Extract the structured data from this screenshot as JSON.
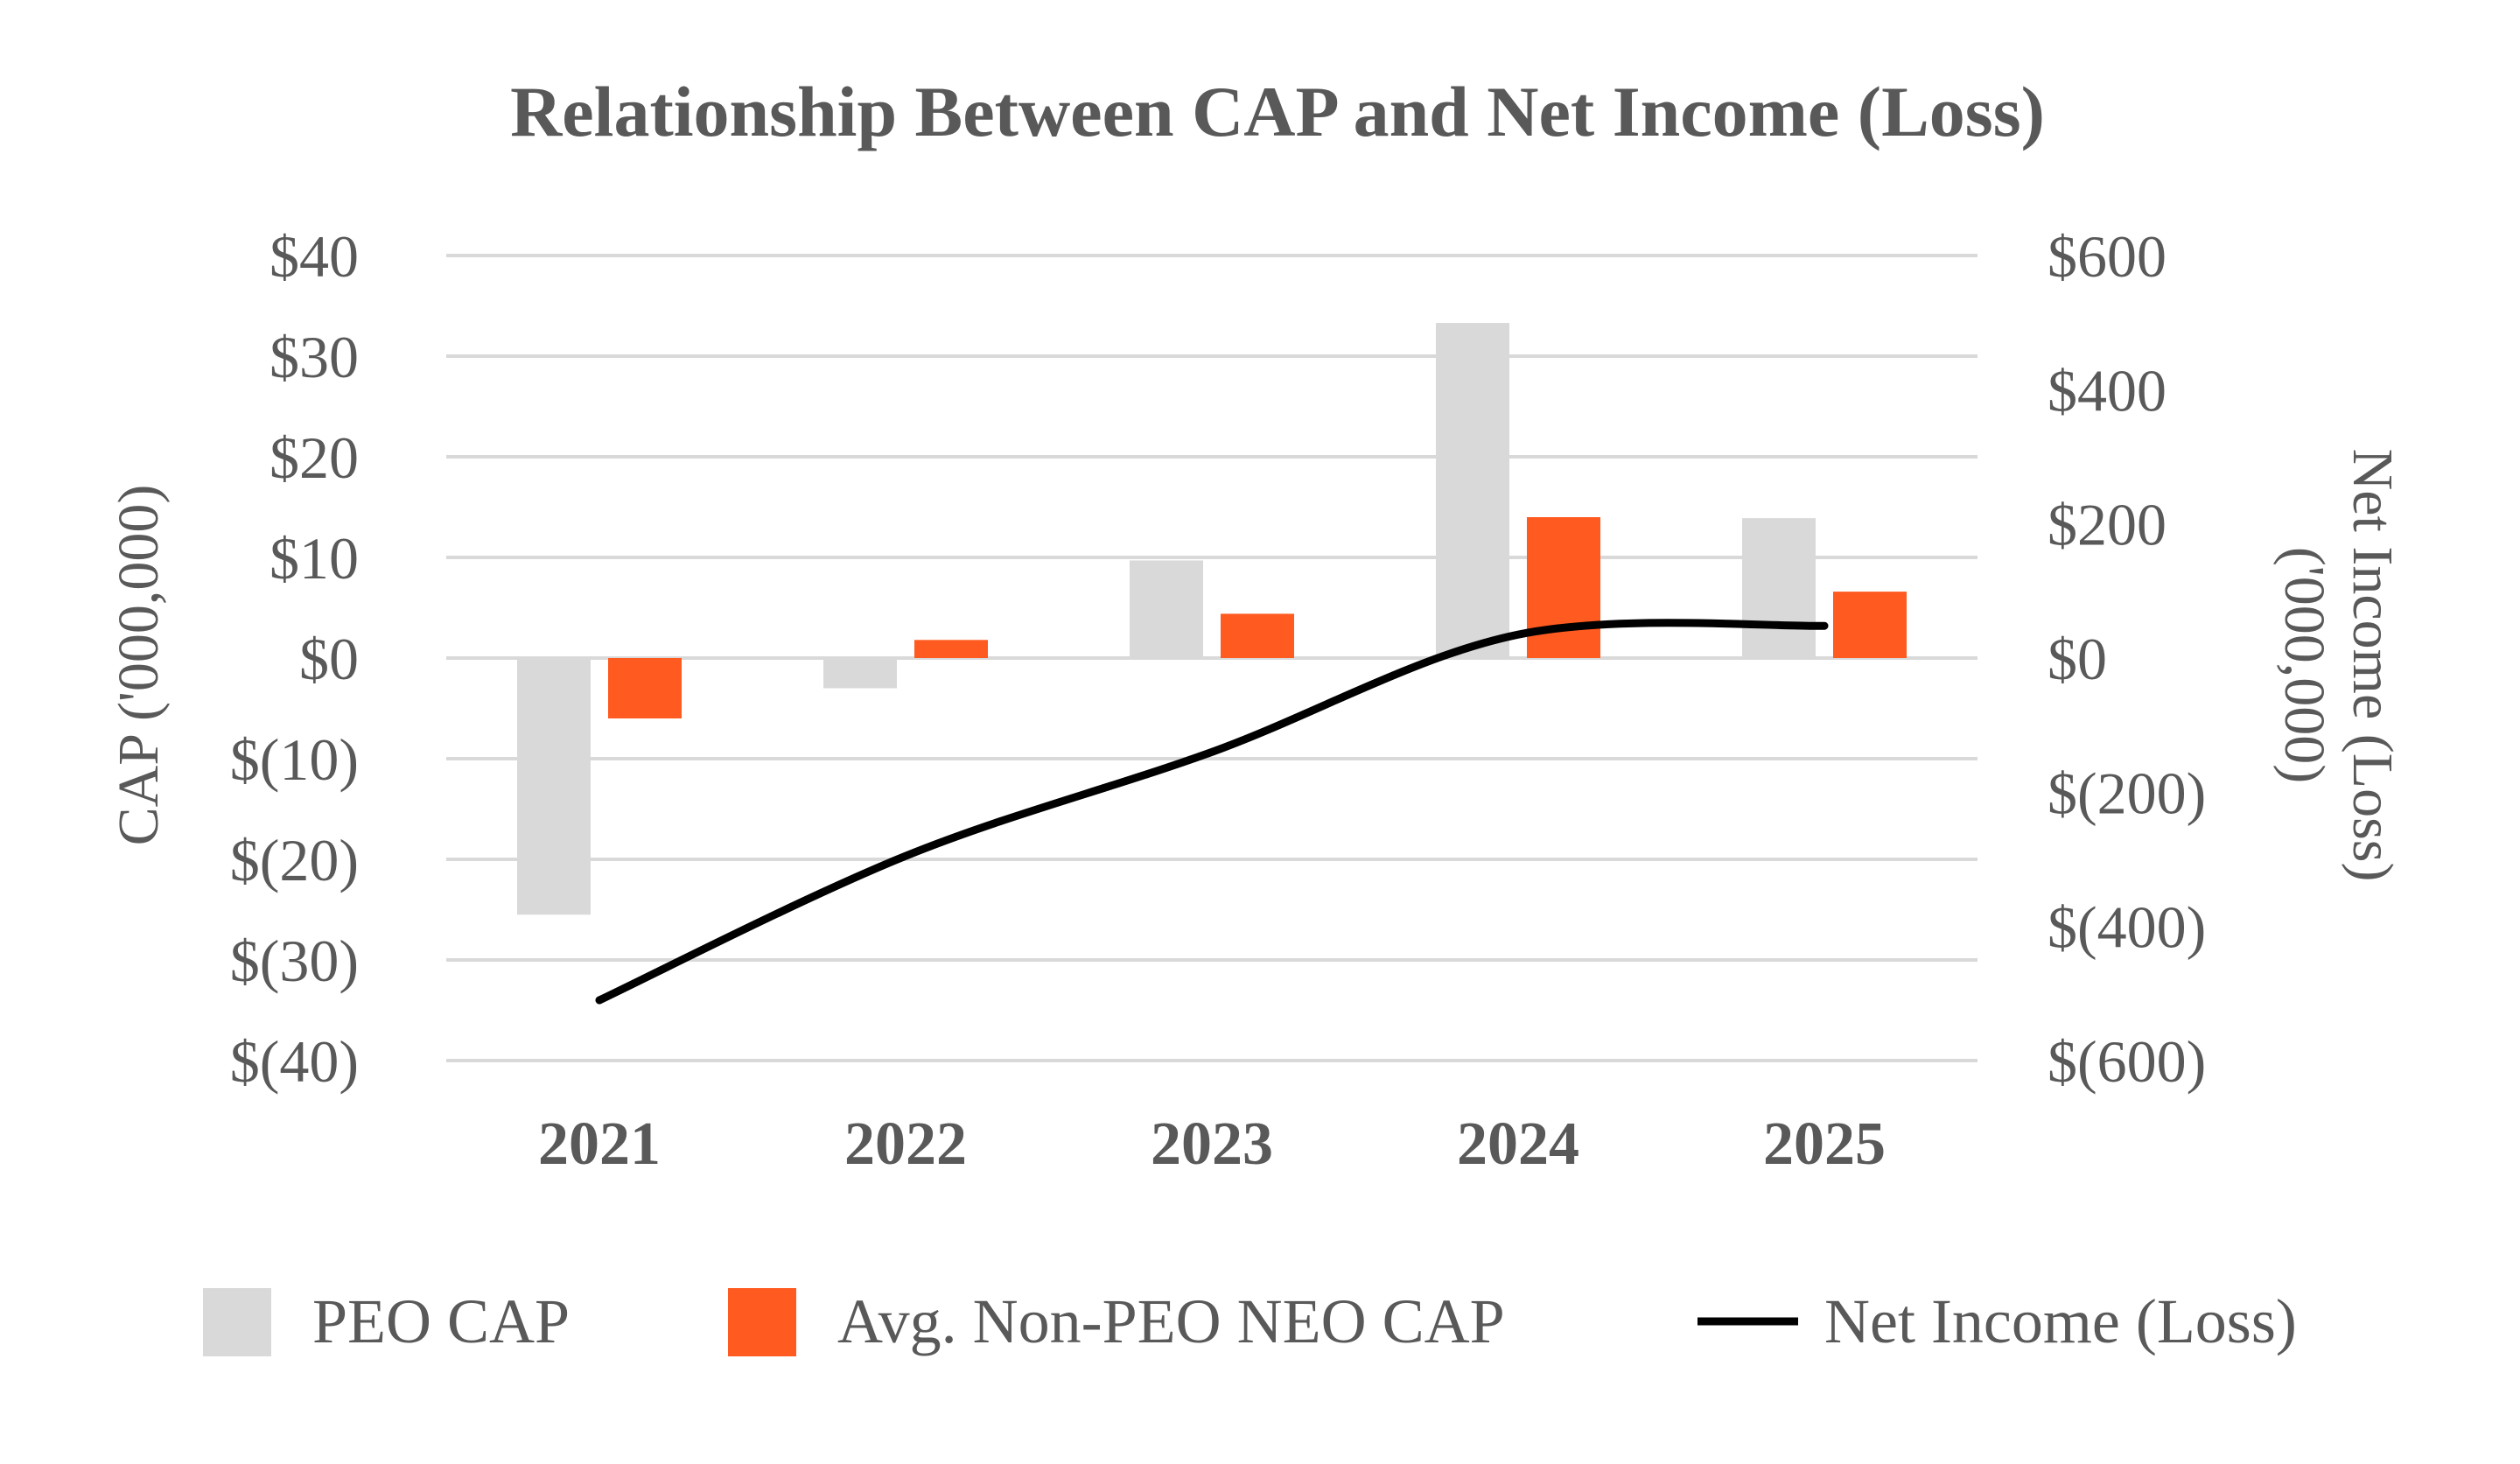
{
  "chart_data": {
    "type": "bar",
    "title": "Relationship Between CAP and Net Income (Loss)",
    "categories": [
      "2021",
      "2022",
      "2023",
      "2024",
      "2025"
    ],
    "series": [
      {
        "name": "PEO CAP",
        "type": "bar",
        "axis": "left",
        "color": "#D9D9D9",
        "values": [
          -25.5,
          -3,
          9.7,
          33.3,
          13.9
        ]
      },
      {
        "name": "Avg. Non-PEO NEO CAP",
        "type": "bar",
        "axis": "left",
        "color": "#FF5A1F",
        "values": [
          -6,
          1.8,
          4.4,
          14,
          6.6
        ]
      },
      {
        "name": "Net Income (Loss)",
        "type": "line",
        "axis": "right",
        "color": "#000000",
        "values": [
          -510,
          -295,
          -140,
          35,
          48
        ]
      }
    ],
    "ylabel_left": "CAP ('000,000)",
    "ylabel_right": "Net Income (Loss) ('000,000)",
    "ylim_left": [
      -40,
      40
    ],
    "ylim_right": [
      -600,
      600
    ],
    "yticks_left": [
      "$40",
      "$30",
      "$20",
      "$10",
      "$0",
      "$(10)",
      "$(20)",
      "$(30)",
      "$(40)"
    ],
    "yticks_right": [
      "$600",
      "$400",
      "$200",
      "$0",
      "$(200)",
      "$(400)",
      "$(600)"
    ],
    "grid": true,
    "legend": "bottom"
  }
}
